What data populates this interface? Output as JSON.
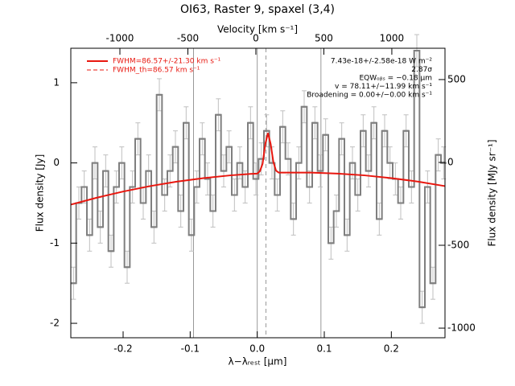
{
  "chart_data": {
    "type": "step",
    "title": "OI63, Raster 9, spaxel (3,4)",
    "x_label": "λ−λᵣₑₛₜ [μm]",
    "y_label": "Flux density [Jy]",
    "y2_label": "Flux density [MJy sr⁻¹]",
    "x2_label": "Velocity [km s⁻¹]",
    "xlim": [
      -0.278,
      0.28
    ],
    "xticks": [
      -0.2,
      -0.1,
      {
        "value": 0,
        "label": "0.0"
      },
      0.1,
      0.2
    ],
    "x2lim": [
      -1361,
      1391
    ],
    "x2ticks": [
      -1000,
      -500,
      0,
      500,
      1000
    ],
    "ylim": [
      -2.18,
      1.43
    ],
    "yticks": [
      -2,
      -1,
      0,
      1
    ],
    "y2lim": [
      -1058,
      689
    ],
    "y2ticks": [
      -1000,
      -500,
      0,
      500
    ],
    "reference_lines": [
      -0.095,
      0,
      0.095
    ],
    "line_center": 0.013,
    "annotations": [
      "7.43e-18+/-2.58e-18 W m⁻²",
      "2.87σ",
      "EQWₒᵦₛ = −0.18 μm",
      "v = 78.11+/−11.99 km s⁻¹",
      "Broadening = 0.00+/−0.00 km s⁻¹"
    ],
    "legend_dashed_label": "FWHM_th=86.57 km s⁻¹",
    "series": [
      {
        "color": "#7f7f7f",
        "error_color": "#bfbfbf",
        "x": [
          -0.274,
          -0.266,
          -0.258,
          -0.25,
          -0.242,
          -0.234,
          -0.226,
          -0.218,
          -0.21,
          -0.202,
          -0.194,
          -0.186,
          -0.178,
          -0.17,
          -0.162,
          -0.154,
          -0.146,
          -0.138,
          -0.13,
          -0.122,
          -0.114,
          -0.106,
          -0.098,
          -0.09,
          -0.082,
          -0.074,
          -0.066,
          -0.058,
          -0.05,
          -0.042,
          -0.034,
          -0.026,
          -0.018,
          -0.01,
          -0.002,
          0.006,
          0.014,
          0.022,
          0.03,
          0.038,
          0.046,
          0.054,
          0.062,
          0.07,
          0.078,
          0.086,
          0.094,
          0.102,
          0.11,
          0.118,
          0.126,
          0.134,
          0.142,
          0.15,
          0.158,
          0.166,
          0.174,
          0.182,
          0.19,
          0.198,
          0.206,
          0.214,
          0.222,
          0.23,
          0.238,
          0.246,
          0.254,
          0.262,
          0.27,
          0.278
        ],
        "values": [
          -1.5,
          -0.5,
          -0.3,
          -0.9,
          0.0,
          -0.8,
          -0.1,
          -1.1,
          -0.3,
          0.0,
          -1.3,
          -0.3,
          0.3,
          -0.5,
          -0.1,
          -0.8,
          0.85,
          -0.4,
          -0.1,
          0.2,
          -0.6,
          0.5,
          -0.9,
          -0.3,
          0.3,
          -0.2,
          -0.6,
          0.6,
          -0.1,
          0.2,
          -0.4,
          0.0,
          -0.3,
          0.5,
          -0.2,
          0.05,
          0.4,
          0.0,
          -0.4,
          0.45,
          0.05,
          -0.7,
          0.0,
          0.7,
          -0.3,
          0.5,
          -0.1,
          0.35,
          -1.0,
          -0.6,
          0.3,
          -0.9,
          0.0,
          -0.4,
          0.4,
          -0.1,
          0.5,
          -0.7,
          0.4,
          0.0,
          -0.2,
          -0.5,
          0.4,
          -0.3,
          1.4,
          -1.8,
          -0.3,
          -1.5,
          0.1,
          0.0
        ],
        "errors": [
          0.2,
          0.2,
          0.2,
          0.2,
          0.2,
          0.2,
          0.2,
          0.2,
          0.2,
          0.2,
          0.2,
          0.2,
          0.2,
          0.2,
          0.2,
          0.2,
          0.2,
          0.2,
          0.2,
          0.2,
          0.2,
          0.2,
          0.2,
          0.2,
          0.2,
          0.2,
          0.2,
          0.2,
          0.2,
          0.2,
          0.2,
          0.2,
          0.2,
          0.2,
          0.2,
          0.2,
          0.2,
          0.2,
          0.2,
          0.2,
          0.2,
          0.2,
          0.2,
          0.2,
          0.2,
          0.2,
          0.2,
          0.2,
          0.2,
          0.2,
          0.2,
          0.2,
          0.2,
          0.2,
          0.2,
          0.2,
          0.2,
          0.2,
          0.2,
          0.2,
          0.2,
          0.2,
          0.2,
          0.2,
          0.2,
          0.2,
          0.2,
          0.2,
          0.2,
          0.2
        ]
      },
      {
        "name": "FWHM=86.57+/-21.30 km s⁻¹",
        "color": "#e8170f",
        "x": [
          -0.278,
          -0.24,
          -0.2,
          -0.16,
          -0.12,
          -0.08,
          -0.04,
          -0.01,
          0.0,
          0.004,
          0.008,
          0.012,
          0.016,
          0.02,
          0.024,
          0.028,
          0.032,
          0.04,
          0.08,
          0.12,
          0.16,
          0.2,
          0.24,
          0.28
        ],
        "values": [
          -0.52,
          -0.435,
          -0.357,
          -0.289,
          -0.233,
          -0.189,
          -0.155,
          -0.137,
          -0.133,
          -0.103,
          -0.01,
          0.235,
          0.373,
          0.237,
          0.014,
          -0.096,
          -0.12,
          -0.121,
          -0.121,
          -0.133,
          -0.155,
          -0.189,
          -0.233,
          -0.289
        ]
      }
    ]
  }
}
